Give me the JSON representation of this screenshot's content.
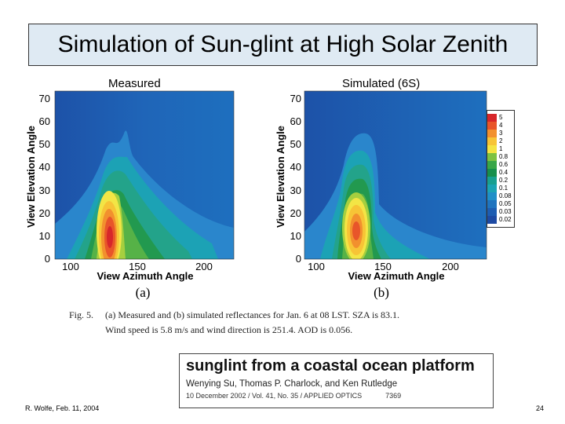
{
  "slide": {
    "title": "Simulation of Sun-glint at High Solar Zenith",
    "footer_left": "R. Wolfe, Feb. 11, 2004",
    "page_number": "24"
  },
  "panels": [
    {
      "label": "Measured",
      "sub_label": "(a)",
      "xlabel": "View Azimuth Angle",
      "ylabel": "View Elevation Angle",
      "x_ticks": [
        "100",
        "150",
        "200"
      ],
      "y_ticks": [
        "0",
        "10",
        "20",
        "30",
        "40",
        "50",
        "60",
        "70"
      ]
    },
    {
      "label": "Simulated (6S)",
      "sub_label": "(b)",
      "xlabel": "View Azimuth Angle",
      "ylabel": "View Elevation Angle",
      "x_ticks": [
        "100",
        "150",
        "200"
      ],
      "y_ticks": [
        "0",
        "10",
        "20",
        "30",
        "40",
        "50",
        "60",
        "70"
      ]
    }
  ],
  "colorbar": {
    "levels": [
      "5",
      "4",
      "3",
      "2",
      "1",
      "0.8",
      "0.6",
      "0.4",
      "0.2",
      "0.1",
      "0.08",
      "0.05",
      "0.03",
      "0.02"
    ],
    "colors": [
      "#d7262a",
      "#e8552a",
      "#f2902e",
      "#f7c436",
      "#f4e443",
      "#7ec242",
      "#39a648",
      "#168f4b",
      "#17a08f",
      "#1aa4b3",
      "#1f8fc8",
      "#1f74bf",
      "#1d5db2",
      "#1d4aa3"
    ]
  },
  "caption": {
    "fig_num": "Fig. 5.",
    "line1": "(a) Measured and (b) simulated reflectances for Jan. 6 at 08 LST.    SZA is 83.1.",
    "line2": "Wind speed is 5.8 m/s and wind direction is 251.4.    AOD is 0.056."
  },
  "reference": {
    "title": "sunglint from a coastal ocean platform",
    "authors": "Wenying Su, Thomas P. Charlock, and Ken Rutledge",
    "publication": "10 December 2002 / Vol. 41, No. 35 / APPLIED OPTICS",
    "page": "7369"
  }
}
